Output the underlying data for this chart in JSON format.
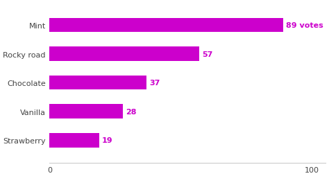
{
  "categories": [
    "Mint",
    "Rocky road",
    "Chocolate",
    "Vanilla",
    "Strawberry"
  ],
  "values": [
    89,
    57,
    37,
    28,
    19
  ],
  "bar_color": "#CC00CC",
  "label_color": "#CC00CC",
  "text_color": "#444444",
  "background_color": "#ffffff",
  "xlim": [
    0,
    105
  ],
  "xticks": [
    0,
    100
  ],
  "bar_height": 0.5,
  "value_labels": [
    "89 votes",
    "57",
    "37",
    "28",
    "19"
  ],
  "fontsize_labels": 8,
  "fontsize_values": 8,
  "fontsize_ticks": 8
}
